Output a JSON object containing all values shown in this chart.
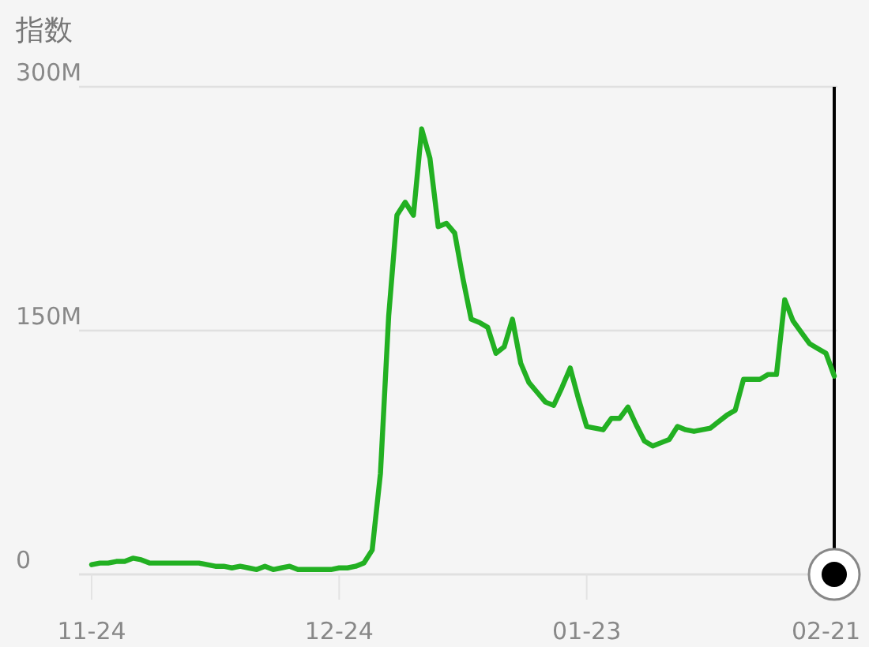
{
  "chart_data": {
    "type": "line",
    "ylabel": "指数",
    "categories": [
      "11-24",
      null,
      null,
      null,
      null,
      null,
      null,
      null,
      null,
      null,
      null,
      null,
      null,
      null,
      null,
      null,
      null,
      null,
      null,
      null,
      null,
      null,
      null,
      null,
      null,
      null,
      null,
      null,
      null,
      null,
      "12-24",
      null,
      null,
      null,
      null,
      null,
      null,
      null,
      null,
      null,
      null,
      null,
      null,
      null,
      null,
      null,
      null,
      null,
      null,
      null,
      null,
      null,
      null,
      null,
      null,
      null,
      null,
      null,
      null,
      null,
      "01-23",
      null,
      null,
      null,
      null,
      null,
      null,
      null,
      null,
      null,
      null,
      null,
      null,
      null,
      null,
      null,
      null,
      null,
      null,
      null,
      null,
      null,
      null,
      null,
      null,
      null,
      null,
      null,
      null,
      "02-21",
      null
    ],
    "series": [
      {
        "color": "#22b022",
        "values": [
          6,
          7,
          7,
          8,
          8,
          10,
          9,
          7,
          7,
          7,
          7,
          7,
          7,
          7,
          6,
          5,
          5,
          4,
          5,
          4,
          3,
          5,
          3,
          4,
          5,
          3,
          3,
          3,
          3,
          3,
          4,
          4,
          5,
          7,
          15,
          62,
          159,
          221,
          229,
          221,
          274,
          256,
          214,
          216,
          210,
          182,
          157,
          155,
          152,
          136,
          140,
          157,
          130,
          118,
          112,
          106,
          104,
          115,
          127,
          108,
          91,
          90,
          89,
          96,
          96,
          103,
          92,
          82,
          79,
          81,
          83,
          91,
          89,
          88,
          89,
          90,
          94,
          98,
          101,
          120,
          120,
          120,
          123,
          123,
          169,
          156,
          149,
          142,
          139,
          136,
          122
        ]
      }
    ],
    "ylim": [
      0,
      300
    ],
    "yticks": [
      0,
      {
        "value": 150,
        "label": "150M"
      },
      {
        "value": 300,
        "label": "300M"
      }
    ],
    "grid": "y",
    "marker": "none",
    "line_style": "solid"
  }
}
